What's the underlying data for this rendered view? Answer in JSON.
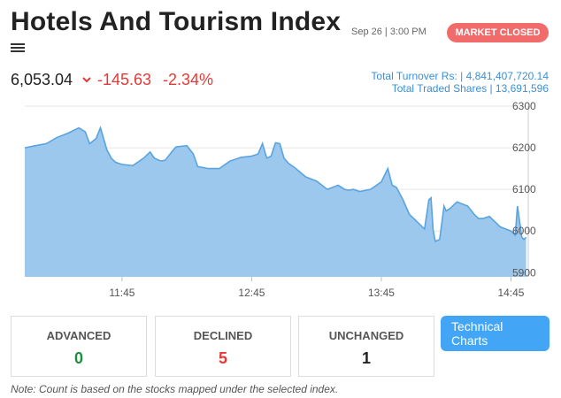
{
  "header": {
    "title": "Hotels And Tourism Index",
    "datetime": "Sep 26 | 3:00 PM",
    "market_status": "MARKET CLOSED"
  },
  "quote": {
    "price": "6,053.04",
    "change": "-145.63",
    "percent": "-2.34%",
    "direction_icon": "chevron-down-icon"
  },
  "turnover": {
    "line1": "Total Turnover Rs: | 4,841,407,720.14",
    "line2": "Total Traded Shares | 13,691,596"
  },
  "chart_data": {
    "type": "area",
    "title": "",
    "xlabel": "",
    "ylabel": "",
    "ylim": [
      5890,
      6300
    ],
    "y_ticks": [
      "6300",
      "6200",
      "6100",
      "6000",
      "5900"
    ],
    "x_ticks": [
      "11:45",
      "12:45",
      "13:45",
      "14:45"
    ],
    "grid": true,
    "y_axis_position": "right",
    "fill_color": "#9cc8ee",
    "line_color": "#5aa3de",
    "series": [
      {
        "x": [
          "11:00",
          "11:05",
          "11:10",
          "11:15",
          "11:20",
          "11:25",
          "11:28",
          "11:30",
          "11:33",
          "11:35",
          "11:38",
          "11:40",
          "11:42",
          "11:45",
          "11:50",
          "11:55",
          "11:58",
          "12:00",
          "12:03",
          "12:05",
          "12:08",
          "12:10",
          "12:15",
          "12:18",
          "12:20",
          "12:25",
          "12:30",
          "12:35",
          "12:40",
          "12:45",
          "12:48",
          "12:50",
          "12:52",
          "12:54",
          "12:56",
          "12:58",
          "13:00",
          "13:02",
          "13:05",
          "13:10",
          "13:15",
          "13:20",
          "13:25",
          "13:28",
          "13:30",
          "13:32",
          "13:35",
          "13:40",
          "13:45",
          "13:48",
          "13:50",
          "13:52",
          "13:55",
          "13:58",
          "14:00",
          "14:03",
          "14:05",
          "14:07",
          "14:08",
          "14:09",
          "14:10",
          "14:12",
          "14:14",
          "14:15",
          "14:17",
          "14:20",
          "14:25",
          "14:28",
          "14:30",
          "14:32",
          "14:35",
          "14:40",
          "14:45",
          "14:47",
          "14:48",
          "14:50",
          "14:51",
          "14:52"
        ],
        "values": [
          6200,
          6205,
          6210,
          6225,
          6235,
          6248,
          6238,
          6210,
          6222,
          6248,
          6195,
          6175,
          6165,
          6160,
          6157,
          6175,
          6190,
          6175,
          6168,
          6170,
          6190,
          6202,
          6205,
          6185,
          6155,
          6150,
          6150,
          6168,
          6177,
          6180,
          6185,
          6210,
          6175,
          6180,
          6212,
          6210,
          6175,
          6163,
          6152,
          6130,
          6120,
          6100,
          6110,
          6100,
          6098,
          6100,
          6095,
          6100,
          6118,
          6150,
          6110,
          6105,
          6075,
          6040,
          6030,
          6015,
          6005,
          6075,
          6080,
          6002,
          5975,
          5980,
          6060,
          6048,
          6055,
          6070,
          6060,
          6040,
          6030,
          6030,
          6035,
          6010,
          6000,
          5990,
          6060,
          5985,
          5980,
          5985
        ]
      }
    ]
  },
  "stats": {
    "advanced": {
      "label": "ADVANCED",
      "value": "0"
    },
    "declined": {
      "label": "DECLINED",
      "value": "5"
    },
    "unchanged": {
      "label": "UNCHANGED",
      "value": "1"
    }
  },
  "technical_button": {
    "label": "Technical Charts"
  },
  "note": "Note: Count is based on the stocks mapped under the selected index."
}
